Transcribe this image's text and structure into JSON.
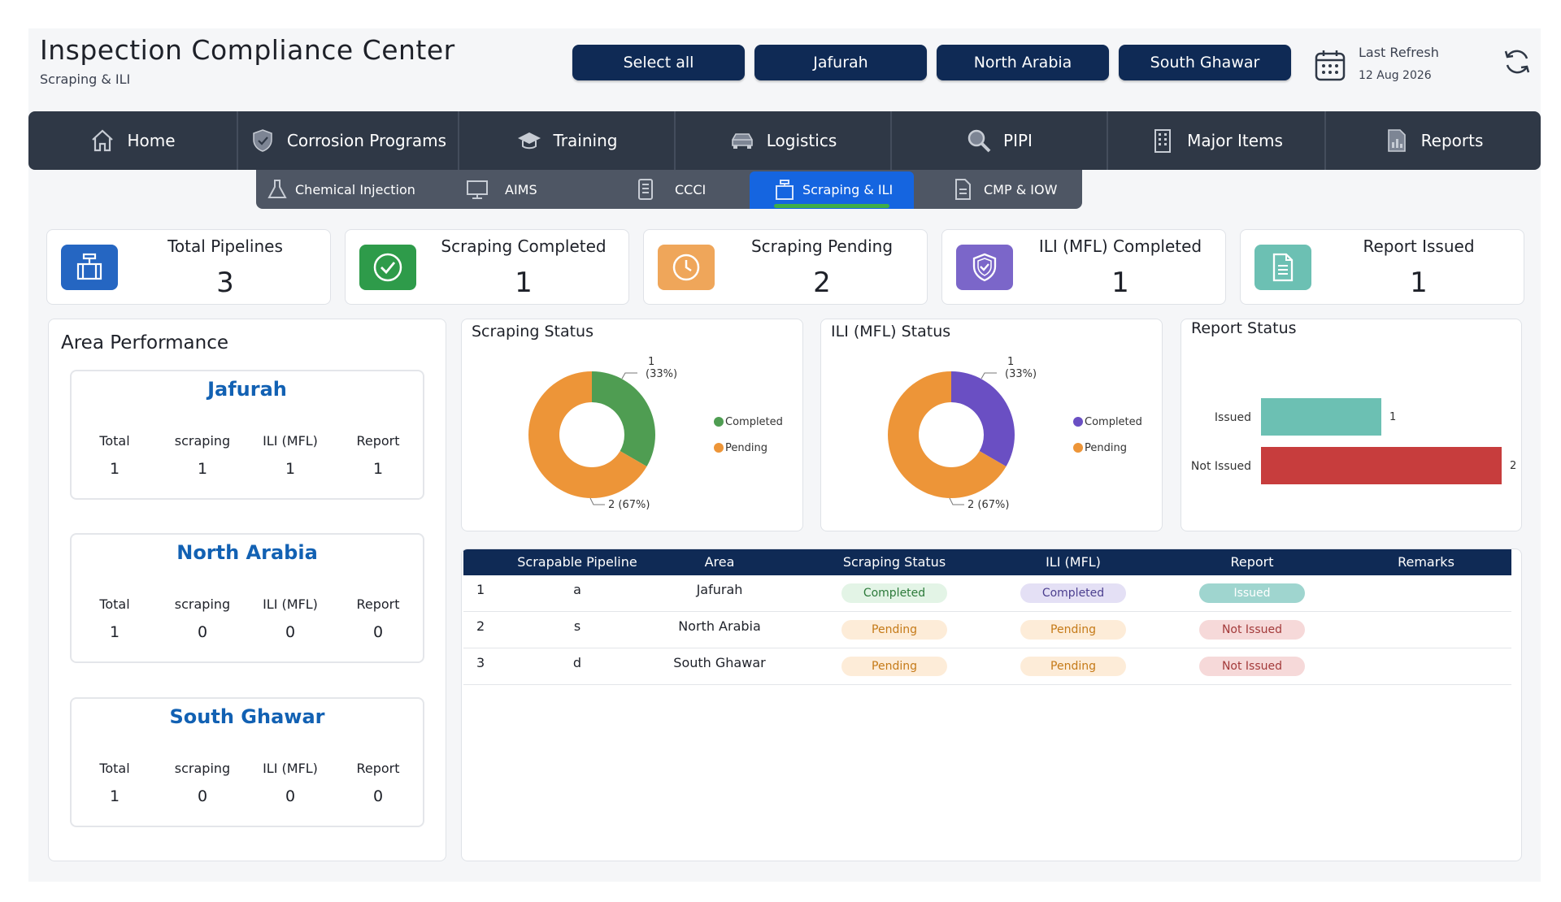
{
  "header": {
    "title": "Inspection Compliance Center",
    "subtitle": "Scraping & ILI",
    "area_buttons": [
      "Select all",
      "Jafurah",
      "North Arabia",
      "South Ghawar"
    ],
    "refresh_label": "Last Refresh",
    "refresh_date": "12 Aug 2026"
  },
  "main_nav": [
    {
      "label": "Home",
      "icon": "home-icon"
    },
    {
      "label": "Corrosion Programs",
      "icon": "shield-icon"
    },
    {
      "label": "Training",
      "icon": "graduation-cap-icon"
    },
    {
      "label": "Logistics",
      "icon": "car-icon"
    },
    {
      "label": "PIPI",
      "icon": "magnifier-icon"
    },
    {
      "label": "Major Items",
      "icon": "building-icon"
    },
    {
      "label": "Reports",
      "icon": "report-icon"
    }
  ],
  "sub_nav": [
    {
      "label": "Chemical Injection",
      "icon": "flask-icon"
    },
    {
      "label": "AIMS",
      "icon": "monitor-icon"
    },
    {
      "label": "CCCI",
      "icon": "checklist-icon"
    },
    {
      "label": "Scraping & ILI",
      "icon": "pipeline-icon",
      "active": true
    },
    {
      "label": "CMP & IOW",
      "icon": "document-icon"
    }
  ],
  "kpis": [
    {
      "label": "Total Pipelines",
      "value": "3",
      "icon": "pipe-valve-icon",
      "color": "#2566c2"
    },
    {
      "label": "Scraping Completed",
      "value": "1",
      "icon": "check-circle-icon",
      "color": "#2e9b4a"
    },
    {
      "label": "Scraping Pending",
      "value": "2",
      "icon": "clock-icon",
      "color": "#efa65a"
    },
    {
      "label": "ILI (MFL) Completed",
      "value": "1",
      "icon": "shield-check-icon",
      "color": "#7b66c9"
    },
    {
      "label": "Report Issued",
      "value": "1",
      "icon": "document-icon",
      "color": "#6cc0b3"
    }
  ],
  "area_performance": {
    "title": "Area Performance",
    "columns": [
      "Total",
      "scraping",
      "ILI (MFL)",
      "Report"
    ],
    "areas": [
      {
        "name": "Jafurah",
        "values": [
          "1",
          "1",
          "1",
          "1"
        ]
      },
      {
        "name": "North Arabia",
        "values": [
          "1",
          "0",
          "0",
          "0"
        ]
      },
      {
        "name": "South Ghawar",
        "values": [
          "1",
          "0",
          "0",
          "0"
        ]
      }
    ]
  },
  "charts": {
    "scraping_title": "Scraping Status",
    "ili_title": "ILI (MFL) Status",
    "report_title": "Report Status"
  },
  "chart_data": [
    {
      "type": "pie",
      "title": "Scraping Status",
      "categories": [
        "Completed",
        "Pending"
      ],
      "values": [
        1,
        2
      ],
      "data_labels": [
        "1\n(33%)",
        "2 (67%)"
      ],
      "colors": [
        "#4f9d52",
        "#ed9538"
      ],
      "legend": "right"
    },
    {
      "type": "pie",
      "title": "ILI (MFL) Status",
      "categories": [
        "Completed",
        "Pending"
      ],
      "values": [
        1,
        2
      ],
      "data_labels": [
        "1\n(33%)",
        "2 (67%)"
      ],
      "colors": [
        "#6a4fc3",
        "#ed9538"
      ],
      "legend": "right"
    },
    {
      "type": "bar",
      "title": "Report Status",
      "categories": [
        "Issued",
        "Not Issued"
      ],
      "values": [
        1,
        2
      ],
      "colors": [
        "#6cc0b3",
        "#c73d3d"
      ],
      "orientation": "horizontal"
    }
  ],
  "table": {
    "columns": [
      "Scrapable Pipeline",
      "Area",
      "Scraping Status",
      "ILI (MFL)",
      "Report",
      "Remarks"
    ],
    "rows": [
      {
        "no": "1",
        "pipeline": "a",
        "area": "Jafurah",
        "scraping": "Completed",
        "ili": "Completed",
        "report": "Issued",
        "remarks": ""
      },
      {
        "no": "2",
        "pipeline": "s",
        "area": "North Arabia",
        "scraping": "Pending",
        "ili": "Pending",
        "report": "Not Issued",
        "remarks": ""
      },
      {
        "no": "3",
        "pipeline": "d",
        "area": "South Ghawar",
        "scraping": "Pending",
        "ili": "Pending",
        "report": "Not Issued",
        "remarks": ""
      }
    ]
  }
}
